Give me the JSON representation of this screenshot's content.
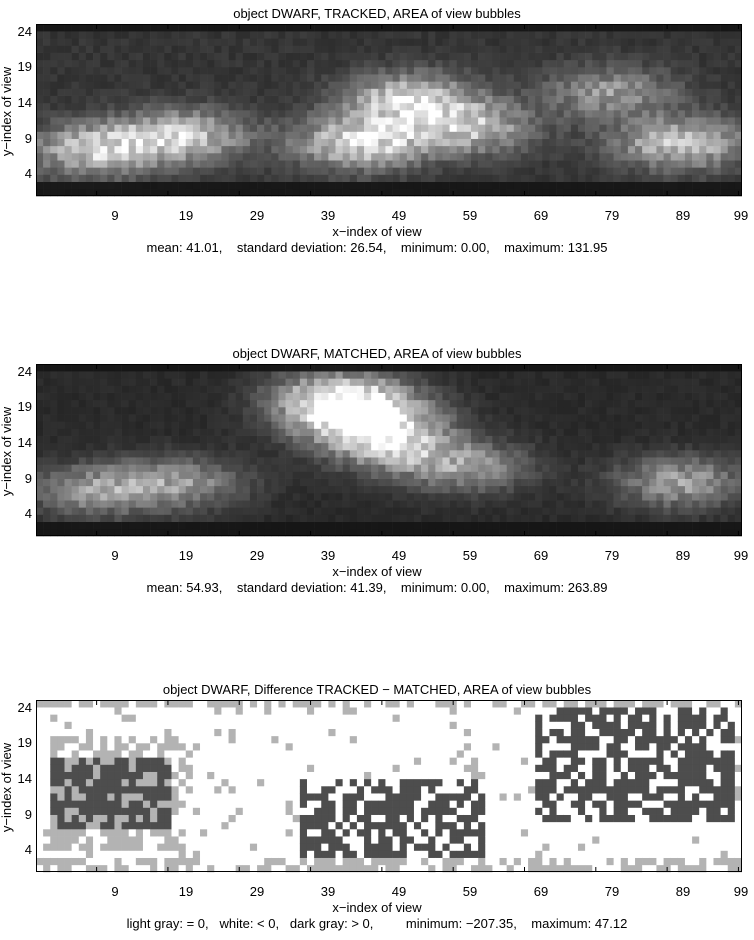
{
  "chart_data": [
    {
      "type": "heatmap",
      "title": "object DWARF,  TRACKED,  AREA of view bubbles",
      "xlabel": "x−index of view",
      "ylabel": "y−index of view",
      "xticks": [
        "9",
        "19",
        "29",
        "39",
        "49",
        "59",
        "69",
        "79",
        "89",
        "99"
      ],
      "yticks": [
        "24",
        "19",
        "14",
        "9",
        "4"
      ],
      "x_range": [
        0,
        99
      ],
      "y_range": [
        0,
        24
      ],
      "colormap": "gray",
      "stats_text": "mean: 41.01,    standard deviation: 26.54,    minimum: 0.00,    maximum: 131.95",
      "mean": 41.01,
      "std": 26.54,
      "min": 0.0,
      "max": 131.95,
      "hotspots": [
        {
          "x": 8,
          "y": 6,
          "value": 85
        },
        {
          "x": 20,
          "y": 8,
          "value": 80
        },
        {
          "x": 45,
          "y": 7,
          "value": 95
        },
        {
          "x": 52,
          "y": 13,
          "value": 90
        },
        {
          "x": 60,
          "y": 9,
          "value": 75
        },
        {
          "x": 90,
          "y": 7,
          "value": 85
        },
        {
          "x": 80,
          "y": 14,
          "value": 55
        }
      ]
    },
    {
      "type": "heatmap",
      "title": "object DWARF,  MATCHED,  AREA of view bubbles",
      "xlabel": "x−index of view",
      "ylabel": "y−index of view",
      "xticks": [
        "9",
        "19",
        "29",
        "39",
        "49",
        "59",
        "69",
        "79",
        "89",
        "99"
      ],
      "yticks": [
        "24",
        "19",
        "14",
        "9",
        "4"
      ],
      "x_range": [
        0,
        99
      ],
      "y_range": [
        0,
        24
      ],
      "colormap": "gray",
      "stats_text": "mean: 54.93,    standard deviation: 41.39,    minimum: 0.00,    maximum: 263.89",
      "mean": 54.93,
      "std": 41.39,
      "min": 0.0,
      "max": 263.89,
      "hotspots": [
        {
          "x": 45,
          "y": 16,
          "value": 250
        },
        {
          "x": 42,
          "y": 19,
          "value": 180
        },
        {
          "x": 50,
          "y": 12,
          "value": 150
        },
        {
          "x": 8,
          "y": 6,
          "value": 120
        },
        {
          "x": 20,
          "y": 7,
          "value": 110
        },
        {
          "x": 60,
          "y": 9,
          "value": 110
        },
        {
          "x": 90,
          "y": 7,
          "value": 130
        }
      ]
    },
    {
      "type": "heatmap",
      "title": "object DWARF,  Difference TRACKED − MATCHED,  AREA of view bubbles",
      "xlabel": "x−index of view",
      "ylabel": "y−index of view",
      "xticks": [
        "9",
        "19",
        "29",
        "39",
        "49",
        "59",
        "69",
        "79",
        "89",
        "99"
      ],
      "yticks": [
        "24",
        "19",
        "14",
        "9",
        "4"
      ],
      "x_range": [
        0,
        99
      ],
      "y_range": [
        0,
        24
      ],
      "legend_text": "light gray: = 0,   white: < 0,   dark gray: > 0,         minimum: −207.35,    maximum: 47.12",
      "categories_legend": {
        "zero": "light gray",
        "negative": "white",
        "positive": "dark gray"
      },
      "min": -207.35,
      "max": 47.12,
      "positive_regions": [
        {
          "x": [
            2,
            18
          ],
          "y": [
            6,
            15
          ]
        },
        {
          "x": [
            37,
            62
          ],
          "y": [
            2,
            12
          ]
        },
        {
          "x": [
            70,
            97
          ],
          "y": [
            7,
            22
          ]
        }
      ],
      "zero_regions": [
        {
          "x": [
            0,
            99
          ],
          "y": [
            0,
            1
          ]
        },
        {
          "x": [
            0,
            99
          ],
          "y": [
            23,
            24
          ]
        },
        {
          "x": [
            2,
            20
          ],
          "y": [
            3,
            18
          ]
        }
      ]
    }
  ],
  "colors": {
    "positive": "#4d4d4d",
    "zero": "#b3b3b3",
    "negative": "#ffffff",
    "grid": "#999999"
  }
}
